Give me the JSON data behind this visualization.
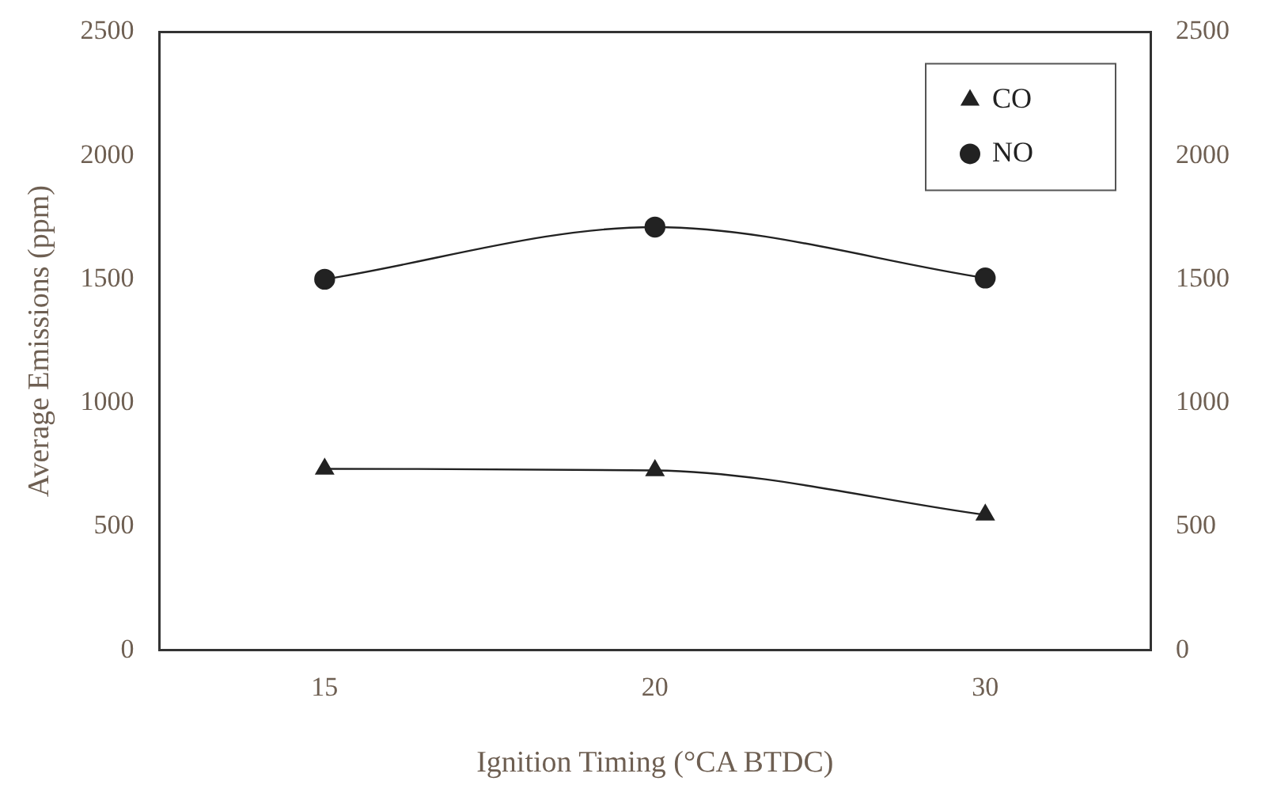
{
  "chart_data": {
    "type": "line",
    "xlabel": "Ignition Timing (°CA BTDC)",
    "ylabel": "Average Emissions (ppm)",
    "categories": [
      "15",
      "20",
      "30"
    ],
    "series": [
      {
        "name": "CO",
        "color": "#222222",
        "marker": "triangle",
        "values": [
          733,
          727,
          547
        ]
      },
      {
        "name": "NO",
        "color": "#222222",
        "marker": "circle",
        "values": [
          1500,
          1711,
          1505
        ]
      }
    ],
    "ylim": [
      0,
      2500
    ],
    "yticks": [
      0,
      500,
      1000,
      1500,
      2000,
      2500
    ],
    "y2lim": [
      0,
      2500
    ],
    "y2ticks": [
      0,
      500,
      1000,
      1500,
      2000,
      2500
    ],
    "grid": false,
    "legend": "top right",
    "line_style": "solid"
  }
}
